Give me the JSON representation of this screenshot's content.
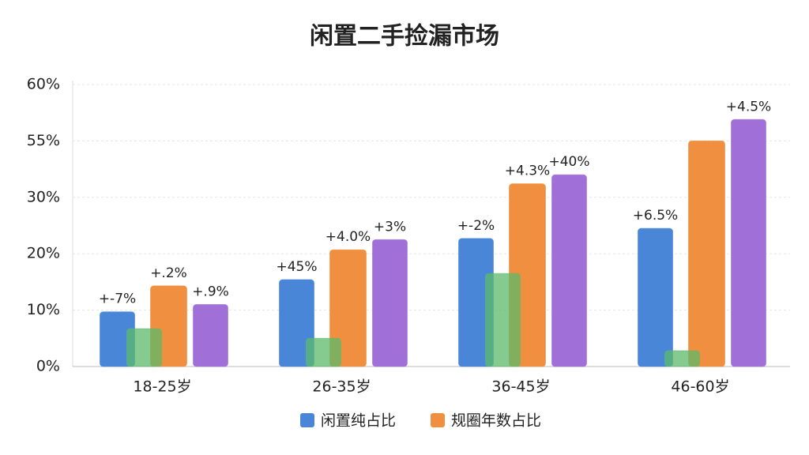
{
  "chart_data": {
    "type": "bar",
    "title": "闲置二手捡漏市场",
    "categories": [
      "18-25岁",
      "26-35岁",
      "36-45岁",
      "46-60岁"
    ],
    "series": [
      {
        "name": "闲置纯占比",
        "color": "#4a86d8",
        "values": [
          9.7,
          15.4,
          22.7,
          24.5
        ],
        "annotations": [
          "+-7%",
          "+45%",
          "+-2%",
          "+6.5%"
        ]
      },
      {
        "name": "规圈年数占比",
        "color": "#ef8f3f",
        "values": [
          14.3,
          20.7,
          36,
          55
        ],
        "annotations": [
          "+.2%",
          "+4.0%",
          "+4.3%",
          null
        ]
      },
      {
        "color": "#5cba6a",
        "values": [
          6.7,
          5,
          16.5,
          2.8
        ]
      },
      {
        "color": "#a070d8",
        "values": [
          11,
          22.5,
          40,
          56.9
        ],
        "annotations": [
          "+.9%",
          "+3%",
          "+40%",
          "+4.5%"
        ]
      }
    ],
    "ylim": [
      0,
      60
    ],
    "yticks": [
      {
        "value": 0,
        "label": "0%"
      },
      {
        "value": 10,
        "label": "10%"
      },
      {
        "value": 20,
        "label": "20%"
      },
      {
        "value": 30,
        "label": "30%"
      },
      {
        "value": 55,
        "label": "55%"
      },
      {
        "value": 60,
        "label": "60%"
      }
    ],
    "grid": true
  }
}
